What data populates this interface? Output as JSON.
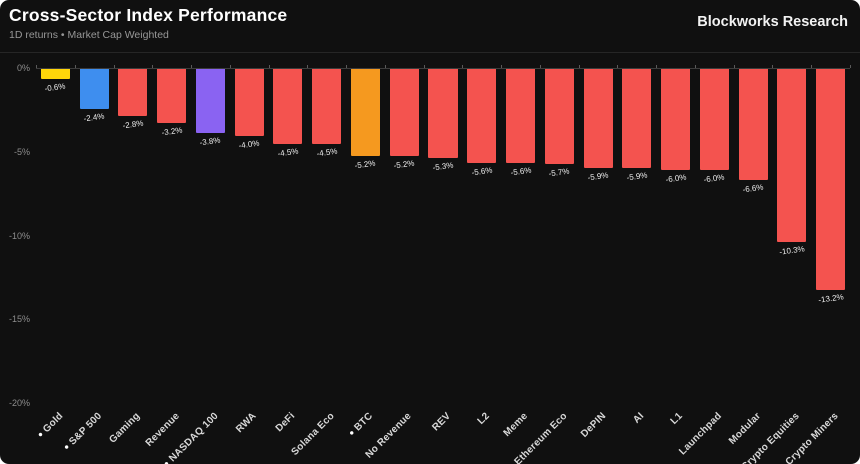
{
  "header": {
    "title": "Cross-Sector Index Performance",
    "subtitle": "1D returns • Market Cap Weighted",
    "brand": "Blockworks Research"
  },
  "colors": {
    "background": "#101010",
    "default_bar": "#F4534F",
    "gold": "#FFD60A",
    "sp500_blue": "#3E8EEF",
    "nasdaq_purple": "#8A63F2",
    "btc_orange": "#F5991F",
    "axis_line": "#3c3c3c"
  },
  "chart_data": {
    "type": "bar",
    "title": "Cross-Sector Index Performance",
    "subtitle": "1D returns • Market Cap Weighted",
    "xlabel": "",
    "ylabel": "",
    "ylim": [
      -20,
      0
    ],
    "yticks": [
      0,
      -5,
      -10,
      -15,
      -20
    ],
    "ytick_labels": [
      "0%",
      "-5%",
      "-10%",
      "-15%",
      "-20%"
    ],
    "grid": false,
    "legend": false,
    "categories": [
      "Gold",
      "S&P 500",
      "Gaming",
      "Revenue",
      "NASDAQ 100",
      "RWA",
      "DeFi",
      "Solana Eco",
      "BTC",
      "No Revenue",
      "REV",
      "L2",
      "Meme",
      "Ethereum Eco",
      "DePIN",
      "AI",
      "L1",
      "Launchpad",
      "Modular",
      "Crypto Equities",
      "Crypto Miners"
    ],
    "values": [
      -0.6,
      -2.4,
      -2.8,
      -3.2,
      -3.8,
      -4.0,
      -4.5,
      -4.5,
      -5.2,
      -5.2,
      -5.3,
      -5.6,
      -5.6,
      -5.7,
      -5.9,
      -5.9,
      -6.0,
      -6.0,
      -6.6,
      -10.3,
      -13.2
    ],
    "value_labels": [
      "-0.6%",
      "-2.4%",
      "-2.8%",
      "-3.2%",
      "-3.8%",
      "-4.0%",
      "-4.5%",
      "-4.5%",
      "-5.2%",
      "-5.2%",
      "-5.3%",
      "-5.6%",
      "-5.6%",
      "-5.7%",
      "-5.9%",
      "-5.9%",
      "-6.0%",
      "-6.0%",
      "-6.6%",
      "-10.3%",
      "-13.2%"
    ],
    "bar_colors": [
      "#FFD60A",
      "#3E8EEF",
      "#F4534F",
      "#F4534F",
      "#8A63F2",
      "#F4534F",
      "#F4534F",
      "#F4534F",
      "#F5991F",
      "#F4534F",
      "#F4534F",
      "#F4534F",
      "#F4534F",
      "#F4534F",
      "#F4534F",
      "#F4534F",
      "#F4534F",
      "#F4534F",
      "#F4534F",
      "#F4534F",
      "#F4534F"
    ],
    "benchmark_dots": [
      true,
      true,
      false,
      false,
      true,
      false,
      false,
      false,
      true,
      false,
      false,
      false,
      false,
      false,
      false,
      false,
      false,
      false,
      false,
      false,
      false
    ]
  }
}
